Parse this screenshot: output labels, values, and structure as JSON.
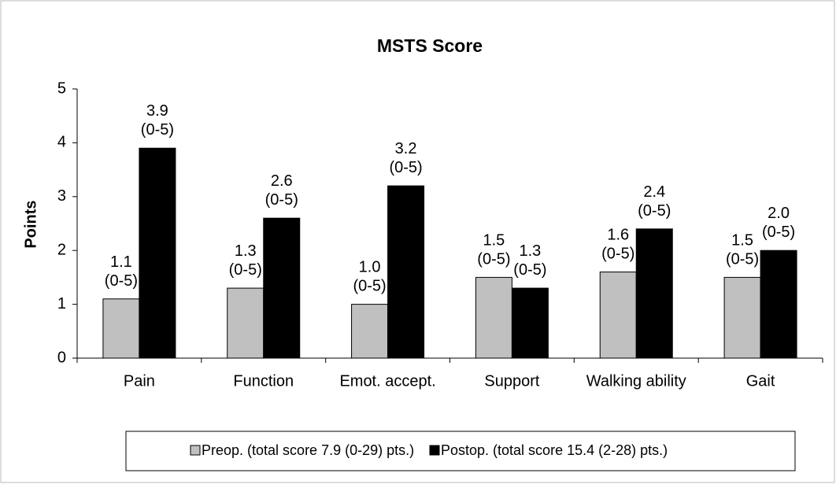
{
  "chart_data": {
    "type": "bar",
    "title": "MSTS Score",
    "y_label": "Points",
    "categories": [
      "Pain",
      "Function",
      "Emot. accept.",
      "Support",
      "Walking ability",
      "Gait"
    ],
    "series": [
      {
        "name": "Preop. (total score 7.9 (0-29) pts.)",
        "color": "#c0c0c0",
        "values": [
          1.1,
          1.3,
          1.0,
          1.5,
          1.6,
          1.5
        ],
        "value_labels": [
          [
            "1.1",
            "(0-5)"
          ],
          [
            "1.3",
            "(0-5)"
          ],
          [
            "1.0",
            "(0-5)"
          ],
          [
            "1.5",
            "(0-5)"
          ],
          [
            "1.6",
            "(0-5)"
          ],
          [
            "1.5",
            "(0-5)"
          ]
        ]
      },
      {
        "name": "Postop. (total score 15.4 (2-28) pts.)",
        "color": "#000000",
        "values": [
          3.9,
          2.6,
          3.2,
          1.3,
          2.4,
          2.0
        ],
        "value_labels": [
          [
            "3.9",
            "(0-5)"
          ],
          [
            "2.6",
            "(0-5)"
          ],
          [
            "3.2",
            "(0-5)"
          ],
          [
            "1.3",
            "(0-5)"
          ],
          [
            "2.4",
            "(0-5)"
          ],
          [
            "2.0",
            "(0-5)"
          ]
        ]
      }
    ],
    "ylim": [
      0,
      5
    ],
    "yticks": [
      0,
      1,
      2,
      3,
      4,
      5
    ],
    "grid": false,
    "legend": "bottom"
  }
}
